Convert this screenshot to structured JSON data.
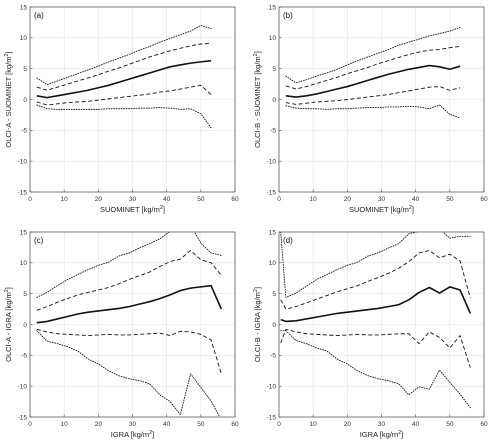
{
  "chart_data": [
    {
      "type": "line",
      "panel_label": "(a)",
      "xlabel_parts": [
        "SUOMINET [kg/m",
        "2",
        "]"
      ],
      "ylabel_parts": [
        "OLCI-A - SUOMINET [kg/m",
        "2",
        "]"
      ],
      "xlim": [
        0,
        60
      ],
      "ylim": [
        -15,
        15
      ],
      "xticks": [
        0,
        10,
        20,
        30,
        40,
        50,
        60
      ],
      "yticks": [
        -15,
        -10,
        -5,
        0,
        5,
        10,
        15
      ],
      "grid": true,
      "x": [
        2,
        5,
        8,
        11,
        14,
        17,
        20,
        23,
        26,
        29,
        32,
        35,
        38,
        41,
        44,
        47,
        50,
        53
      ],
      "series": [
        {
          "style": "solid",
          "values": [
            0.6,
            0.3,
            0.6,
            0.9,
            1.2,
            1.5,
            1.9,
            2.3,
            2.8,
            3.3,
            3.8,
            4.3,
            4.8,
            5.3,
            5.6,
            5.9,
            6.1,
            6.3
          ]
        },
        {
          "style": "dashed",
          "values": [
            2.0,
            1.5,
            2.0,
            2.5,
            3.0,
            3.5,
            4.0,
            4.6,
            5.1,
            5.7,
            6.3,
            6.9,
            7.4,
            7.9,
            8.3,
            8.7,
            9.0,
            9.1
          ]
        },
        {
          "style": "dashed",
          "values": [
            -0.4,
            -0.9,
            -0.7,
            -0.5,
            -0.4,
            -0.3,
            -0.1,
            0.1,
            0.3,
            0.5,
            0.7,
            0.9,
            1.2,
            1.4,
            1.7,
            2.0,
            2.3,
            0.8
          ]
        },
        {
          "style": "dotted",
          "values": [
            3.5,
            2.4,
            3.0,
            3.6,
            4.2,
            4.8,
            5.4,
            6.1,
            6.7,
            7.3,
            8.0,
            8.6,
            9.3,
            9.9,
            10.5,
            11.1,
            12.0,
            11.5
          ]
        },
        {
          "style": "dotted",
          "values": [
            -0.9,
            -1.5,
            -1.6,
            -1.6,
            -1.6,
            -1.6,
            -1.6,
            -1.5,
            -1.5,
            -1.5,
            -1.4,
            -1.4,
            -1.3,
            -1.4,
            -1.6,
            -1.5,
            -2.3,
            -4.6
          ]
        }
      ]
    },
    {
      "type": "line",
      "panel_label": "(b)",
      "xlabel_parts": [
        "SUOMINET [kg/m",
        "2",
        "]"
      ],
      "ylabel_parts": [
        "OLCI-B - SUOMINET [kg/m",
        "2",
        "]"
      ],
      "xlim": [
        0,
        60
      ],
      "ylim": [
        -15,
        15
      ],
      "xticks": [
        0,
        10,
        20,
        30,
        40,
        50,
        60
      ],
      "yticks": [
        -15,
        -10,
        -5,
        0,
        5,
        10,
        15
      ],
      "grid": true,
      "x": [
        2,
        5,
        8,
        11,
        14,
        17,
        20,
        23,
        26,
        29,
        32,
        35,
        38,
        41,
        44,
        47,
        50,
        53
      ],
      "series": [
        {
          "style": "solid",
          "values": [
            0.6,
            0.4,
            0.6,
            0.9,
            1.3,
            1.7,
            2.1,
            2.6,
            3.1,
            3.6,
            4.1,
            4.5,
            4.9,
            5.2,
            5.5,
            5.3,
            4.9,
            5.4
          ]
        },
        {
          "style": "dashed",
          "values": [
            2.2,
            1.7,
            2.1,
            2.6,
            3.1,
            3.6,
            4.2,
            4.7,
            5.2,
            5.8,
            6.3,
            6.8,
            7.3,
            7.7,
            8.0,
            8.1,
            8.4,
            8.6
          ]
        },
        {
          "style": "dashed",
          "values": [
            -0.5,
            -0.8,
            -0.6,
            -0.4,
            -0.3,
            -0.2,
            0.0,
            0.2,
            0.4,
            0.6,
            0.8,
            1.1,
            1.4,
            1.7,
            2.0,
            2.1,
            1.5,
            1.9
          ]
        },
        {
          "style": "dotted",
          "values": [
            3.8,
            2.7,
            3.2,
            3.8,
            4.3,
            4.9,
            5.6,
            6.3,
            6.9,
            7.5,
            8.1,
            8.8,
            9.3,
            9.8,
            10.3,
            10.7,
            11.1,
            11.7
          ]
        },
        {
          "style": "dotted",
          "values": [
            -1.0,
            -1.4,
            -1.5,
            -1.5,
            -1.6,
            -1.5,
            -1.5,
            -1.4,
            -1.3,
            -1.3,
            -1.2,
            -1.2,
            -1.1,
            -1.2,
            -1.5,
            -0.9,
            -2.4,
            -3.0
          ]
        }
      ]
    },
    {
      "type": "line",
      "panel_label": "(c)",
      "xlabel_parts": [
        "IGRA [kg/m",
        "2",
        "]"
      ],
      "ylabel_parts": [
        "OLCI-A - IGRA [kg/m",
        "2",
        "]"
      ],
      "xlim": [
        0,
        60
      ],
      "ylim": [
        -15,
        15
      ],
      "xticks": [
        0,
        10,
        20,
        30,
        40,
        50,
        60
      ],
      "yticks": [
        -15,
        -10,
        -5,
        0,
        5,
        10,
        15
      ],
      "grid": true,
      "x": [
        2,
        5,
        8,
        11,
        14,
        17,
        20,
        23,
        26,
        29,
        32,
        35,
        38,
        41,
        44,
        47,
        50,
        53,
        56
      ],
      "series": [
        {
          "style": "solid",
          "values": [
            0.3,
            0.5,
            0.9,
            1.3,
            1.7,
            2.0,
            2.2,
            2.4,
            2.6,
            2.9,
            3.3,
            3.7,
            4.2,
            4.8,
            5.5,
            5.9,
            6.1,
            6.3,
            2.5
          ]
        },
        {
          "style": "dashed",
          "values": [
            2.3,
            2.9,
            3.6,
            4.2,
            4.8,
            5.2,
            5.6,
            6.0,
            6.6,
            7.3,
            7.9,
            8.5,
            9.4,
            10.2,
            10.6,
            12.0,
            10.5,
            10.0,
            8.0
          ]
        },
        {
          "style": "dashed",
          "values": [
            -0.8,
            -1.2,
            -1.5,
            -1.6,
            -1.7,
            -1.8,
            -1.7,
            -1.6,
            -1.7,
            -1.7,
            -1.6,
            -1.5,
            -1.4,
            -1.8,
            -1.1,
            -1.2,
            -1.6,
            -2.5,
            -8.0
          ]
        },
        {
          "style": "dotted",
          "values": [
            4.4,
            5.2,
            6.3,
            7.3,
            8.1,
            8.9,
            9.6,
            10.1,
            11.1,
            11.6,
            12.4,
            13.1,
            13.9,
            15.1,
            15.6,
            16.1,
            13.2,
            11.6,
            11.2
          ]
        },
        {
          "style": "dotted",
          "values": [
            -1.0,
            -2.7,
            -3.1,
            -3.6,
            -4.3,
            -5.6,
            -6.4,
            -7.5,
            -8.3,
            -8.8,
            -9.1,
            -9.6,
            -11.4,
            -12.5,
            -14.6,
            -8.0,
            -10.2,
            -12.4,
            -15.5
          ]
        }
      ]
    },
    {
      "type": "line",
      "panel_label": "(d)",
      "xlabel_parts": [
        "IGRA [kg/m",
        "2",
        "]"
      ],
      "ylabel_parts": [
        "OLCI-B - IGRA [kg/m",
        "2",
        "]"
      ],
      "xlim": [
        0,
        60
      ],
      "ylim": [
        -15,
        15
      ],
      "xticks": [
        0,
        10,
        20,
        30,
        40,
        50,
        60
      ],
      "yticks": [
        -15,
        -10,
        -5,
        0,
        5,
        10,
        15
      ],
      "grid": true,
      "x": [
        0.5,
        2,
        5,
        8,
        11,
        14,
        17,
        20,
        23,
        26,
        29,
        32,
        35,
        38,
        41,
        44,
        47,
        50,
        53,
        56
      ],
      "series": [
        {
          "style": "solid",
          "values": [
            0.8,
            0.5,
            0.6,
            0.9,
            1.2,
            1.5,
            1.8,
            2.0,
            2.2,
            2.4,
            2.6,
            2.9,
            3.2,
            4.0,
            5.2,
            6.0,
            5.1,
            6.1,
            5.6,
            1.8
          ]
        },
        {
          "style": "dashed",
          "values": [
            4.0,
            2.5,
            2.9,
            3.5,
            4.1,
            4.7,
            5.3,
            5.8,
            6.3,
            7.0,
            7.6,
            8.3,
            9.1,
            10.2,
            11.6,
            12.0,
            10.8,
            11.4,
            10.3,
            4.3
          ]
        },
        {
          "style": "dashed",
          "values": [
            -3.0,
            -0.8,
            -1.2,
            -1.5,
            -1.6,
            -1.7,
            -1.8,
            -1.7,
            -1.6,
            -1.7,
            -1.7,
            -1.6,
            -1.5,
            -1.5,
            -3.1,
            -1.2,
            -2.1,
            -3.8,
            -1.8,
            -7.0
          ]
        },
        {
          "style": "dotted",
          "values": [
            15.0,
            4.4,
            5.1,
            6.2,
            7.3,
            8.1,
            8.9,
            9.6,
            10.1,
            11.1,
            11.6,
            12.4,
            13.1,
            14.7,
            15.1,
            16.1,
            15.5,
            14.0,
            14.3,
            14.3
          ]
        },
        {
          "style": "dotted",
          "values": [
            -1.0,
            -1.0,
            -2.6,
            -3.1,
            -3.8,
            -4.3,
            -5.6,
            -6.4,
            -7.5,
            -8.3,
            -8.8,
            -9.1,
            -9.6,
            -11.4,
            -10.1,
            -10.5,
            -7.4,
            -9.4,
            -11.3,
            -13.5
          ]
        }
      ]
    }
  ]
}
